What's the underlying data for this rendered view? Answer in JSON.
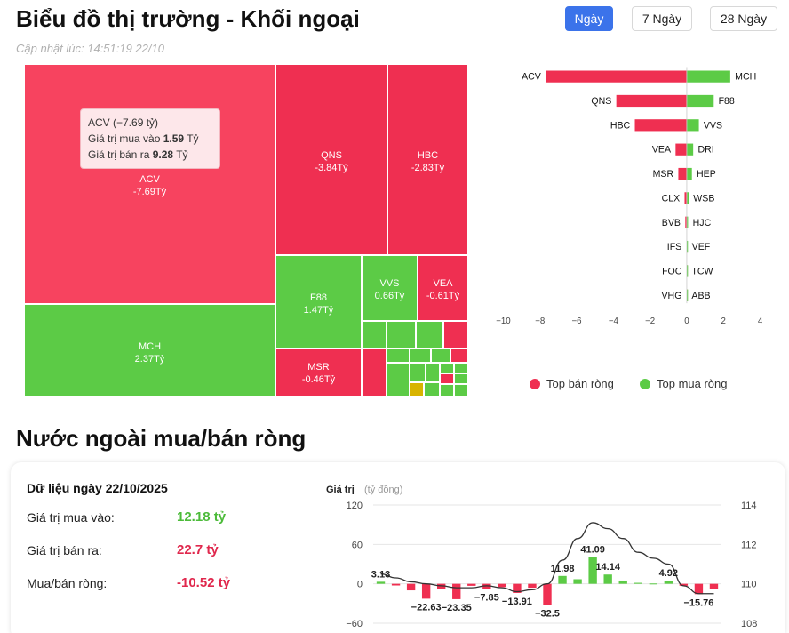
{
  "header": {
    "title": "Biểu đồ thị trường - Khối ngoại",
    "updated": "Cập nhật lúc: 14:51:19 22/10"
  },
  "range_tabs": [
    {
      "label": "Ngày",
      "active": true
    },
    {
      "label": "7 Ngày",
      "active": false
    },
    {
      "label": "28 Ngày",
      "active": false
    }
  ],
  "tooltip": {
    "line1": "ACV (−7.69 tỷ)",
    "buy_label": "Giá trị mua vào",
    "buy_value": "1.59",
    "sell_label": "Giá trị bán ra",
    "sell_value": "9.28",
    "unit": "Tỷ"
  },
  "legend": {
    "sell": "Top bán ròng",
    "buy": "Top mua ròng"
  },
  "colors": {
    "sell": "#ef2f51",
    "sell_light": "#f7435f",
    "buy": "#5ccb46",
    "buy_bar": "#5ccb46",
    "neutral": "#d8b400",
    "axis_line": "#333333"
  },
  "section": {
    "title": "Nước ngoài mua/bán ròng",
    "date_heading": "Dữ liệu ngày 22/10/2025",
    "stats": [
      {
        "label": "Giá trị mua vào:",
        "value": "12.18 tỷ",
        "color": "#4cbb3a"
      },
      {
        "label": "Giá trị bán ra:",
        "value": "22.7 tỷ",
        "color": "#e0284d"
      },
      {
        "label": "Mua/bán ròng:",
        "value": "-10.52 tỷ",
        "color": "#e0284d"
      }
    ]
  },
  "chart_data": [
    {
      "type": "treemap",
      "unit": "Tỷ",
      "items": [
        {
          "name": "ACV",
          "value": -7.69,
          "label": "-7.69Tỷ"
        },
        {
          "name": "MCH",
          "value": 2.37,
          "label": "2.37Tỷ"
        },
        {
          "name": "QNS",
          "value": -3.84,
          "label": "-3.84Tỷ"
        },
        {
          "name": "HBC",
          "value": -2.83,
          "label": "-2.83Tỷ"
        },
        {
          "name": "F88",
          "value": 1.47,
          "label": "1.47Tỷ"
        },
        {
          "name": "VVS",
          "value": 0.66,
          "label": "0.66Tỷ"
        },
        {
          "name": "VEA",
          "value": -0.61,
          "label": "-0.61Tỷ"
        },
        {
          "name": "MSR",
          "value": -0.46,
          "label": "-0.46Tỷ"
        }
      ]
    },
    {
      "type": "bar",
      "orientation": "horizontal-diverging",
      "xlim": [
        -10,
        4
      ],
      "xticks": [
        -10,
        -8,
        -6,
        -4,
        -2,
        0,
        2,
        4
      ],
      "grid": false,
      "legend_position": "bottom",
      "rows": [
        {
          "sell_code": "ACV",
          "sell": -7.69,
          "buy_code": "MCH",
          "buy": 2.37
        },
        {
          "sell_code": "QNS",
          "sell": -3.84,
          "buy_code": "F88",
          "buy": 1.47
        },
        {
          "sell_code": "HBC",
          "sell": -2.83,
          "buy_code": "VVS",
          "buy": 0.66
        },
        {
          "sell_code": "VEA",
          "sell": -0.61,
          "buy_code": "DRI",
          "buy": 0.35
        },
        {
          "sell_code": "MSR",
          "sell": -0.46,
          "buy_code": "HEP",
          "buy": 0.28
        },
        {
          "sell_code": "CLX",
          "sell": -0.12,
          "buy_code": "WSB",
          "buy": 0.1
        },
        {
          "sell_code": "BVB",
          "sell": -0.08,
          "buy_code": "HJC",
          "buy": 0.07
        },
        {
          "sell_code": "IFS",
          "sell": -0.02,
          "buy_code": "VEF",
          "buy": 0.02
        },
        {
          "sell_code": "FOC",
          "sell": -0.01,
          "buy_code": "TCW",
          "buy": 0.01
        },
        {
          "sell_code": "VHG",
          "sell": -0.01,
          "buy_code": "ABB",
          "buy": 0.01
        }
      ]
    },
    {
      "type": "bar",
      "subtype": "bar-with-line",
      "ylabel": "Giá trị",
      "ylabel_unit": "(tỷ đồng)",
      "ylim": [
        -60,
        120
      ],
      "yticks": [
        -60,
        0,
        60,
        120
      ],
      "y2lim": [
        108,
        114
      ],
      "y2ticks": [
        108,
        110,
        112,
        114
      ],
      "grid": true,
      "values": [
        3.13,
        -2.5,
        -10,
        -22.63,
        -8,
        -23.35,
        -3,
        -7.85,
        -5,
        -13.91,
        -6,
        -32.5,
        11.98,
        7,
        41.09,
        14.14,
        5,
        1.5,
        0.5,
        4.92,
        -3,
        -15.76,
        -8
      ],
      "labels": {
        "0": "3.13",
        "3": "-22.63",
        "5": "-23.35",
        "7": "-7.85",
        "9": "-13.91",
        "11": "-32.5",
        "12": "11.98",
        "14": "41.09",
        "15": "14.14",
        "19": "4.92",
        "21": "-15.76"
      },
      "line": [
        110.5,
        110.3,
        110.1,
        110.0,
        109.9,
        109.8,
        109.8,
        109.9,
        109.8,
        109.6,
        109.7,
        110.0,
        111.2,
        112.3,
        113.1,
        112.8,
        112.3,
        111.6,
        111.3,
        111.0,
        109.9,
        109.5,
        109.5
      ]
    }
  ]
}
